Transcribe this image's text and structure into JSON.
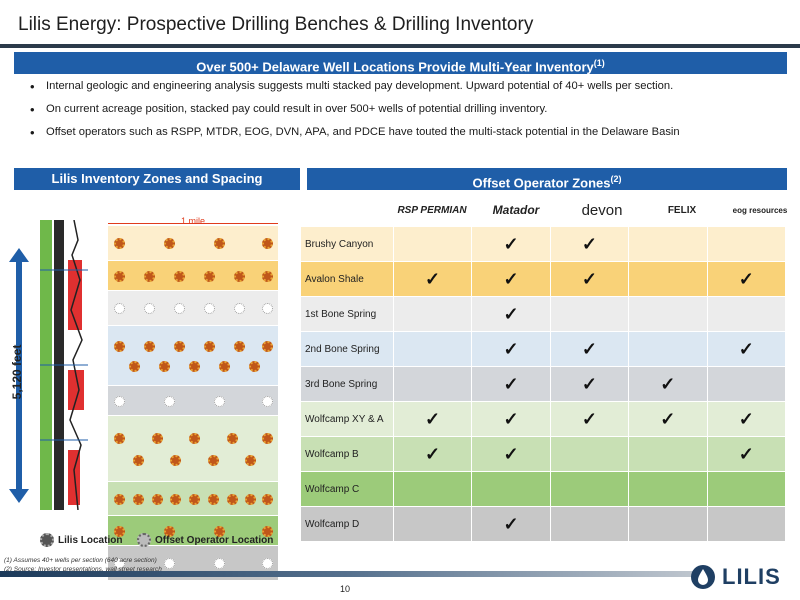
{
  "page": {
    "title": "Lilis Energy: Prospective Drilling Benches & Drilling Inventory",
    "page_number": "10"
  },
  "main_banner": {
    "text": "Over 500+ Delaware Well Locations Provide Multi-Year Inventory",
    "sup": "(1)"
  },
  "bullets": [
    "Internal geologic and engineering analysis suggests multi stacked pay development.  Upward potential of 40+ wells per section.",
    "On current acreage position, stacked pay could result in over 500+ wells of potential drilling inventory.",
    "Offset operators such as RSPP, MTDR, EOG, DVN, APA, and PDCE have touted the multi-stack potential in the Delaware Basin"
  ],
  "left_panel": {
    "banner": "Lilis Inventory Zones and Spacing",
    "mile_label": "1 mile",
    "depth_label": "5,120 feet",
    "legend": {
      "lilis": "Lilis Location",
      "offset": "Offset Operator Location"
    },
    "zones": [
      {
        "color": "#fdeecd",
        "rows": [
          {
            "type": "lilis",
            "count": 4
          }
        ]
      },
      {
        "color": "#f9d278",
        "rows": [
          {
            "type": "lilis",
            "count": 6
          }
        ]
      },
      {
        "color": "#ececec",
        "rows": [
          {
            "type": "offset",
            "count": 6
          }
        ]
      },
      {
        "color": "#dbe7f2",
        "rows": [
          {
            "type": "lilis",
            "count": 6
          },
          {
            "type": "lilis",
            "count": 5
          }
        ]
      },
      {
        "color": "#d3d6da",
        "rows": [
          {
            "type": "offset",
            "count": 4
          }
        ]
      },
      {
        "color": "#e2edd6",
        "rows": [
          {
            "type": "lilis",
            "count": 5
          },
          {
            "type": "lilis",
            "count": 4
          }
        ]
      },
      {
        "color": "#c8e0b4",
        "rows": [
          {
            "type": "lilis",
            "count": 9
          }
        ]
      },
      {
        "color": "#9ccb7a",
        "rows": [
          {
            "type": "lilis",
            "count": 4
          }
        ]
      },
      {
        "color": "#c7c7c7",
        "rows": [
          {
            "type": "offset",
            "count": 4
          }
        ]
      }
    ]
  },
  "right_panel": {
    "banner": "Offset Operator Zones",
    "banner_sup": "(2)",
    "operators": [
      {
        "name": "RSP PERMIAN",
        "color": "#1f3e73"
      },
      {
        "name": "Matador",
        "color": "#1f3e73"
      },
      {
        "name": "devon",
        "color": "#222222"
      },
      {
        "name": "FELIX",
        "color": "#3a7bbd"
      },
      {
        "name": "eog resources",
        "color": "#c0171c"
      }
    ],
    "check_glyph": "✓",
    "rows": [
      {
        "zone": "Brushy Canyon",
        "color": "#fdeecd",
        "checks": [
          false,
          true,
          true,
          false,
          false
        ]
      },
      {
        "zone": "Avalon Shale",
        "color": "#f9d278",
        "checks": [
          true,
          true,
          true,
          false,
          true
        ]
      },
      {
        "zone": "1st Bone Spring",
        "color": "#ececec",
        "checks": [
          false,
          true,
          false,
          false,
          false
        ]
      },
      {
        "zone": "2nd Bone Spring",
        "color": "#dbe7f2",
        "checks": [
          false,
          true,
          true,
          false,
          true
        ]
      },
      {
        "zone": "3rd Bone Spring",
        "color": "#d3d6da",
        "checks": [
          false,
          true,
          true,
          true,
          false
        ]
      },
      {
        "zone": "Wolfcamp XY & A",
        "color": "#e2edd6",
        "checks": [
          true,
          true,
          true,
          true,
          true
        ]
      },
      {
        "zone": "Wolfcamp B",
        "color": "#c8e0b4",
        "checks": [
          true,
          true,
          false,
          false,
          true
        ]
      },
      {
        "zone": "Wolfcamp C",
        "color": "#9ccb7a",
        "checks": [
          false,
          false,
          false,
          false,
          false
        ]
      },
      {
        "zone": "Wolfcamp D",
        "color": "#c7c7c7",
        "checks": [
          false,
          true,
          false,
          false,
          false
        ]
      }
    ]
  },
  "footnotes": [
    "(1)      Assumes 40+ wells per section (640 acre section)",
    "(2)      Source: Investor presentations, wall street research"
  ],
  "logo": {
    "text": "LILIS"
  }
}
